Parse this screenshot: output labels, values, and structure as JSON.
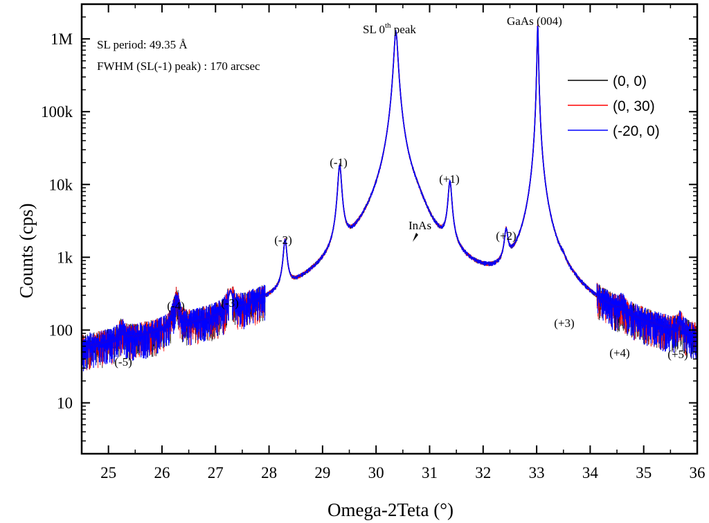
{
  "chart_data": {
    "type": "line",
    "title": "",
    "xlabel": "Omega-2Teta (°)",
    "ylabel": "Counts (cps)",
    "xlim": [
      24.5,
      36.0
    ],
    "ylim": [
      2,
      3000000
    ],
    "yscale": "log",
    "x_ticks": [
      25,
      26,
      27,
      28,
      29,
      30,
      31,
      32,
      33,
      34,
      35,
      36
    ],
    "x_tick_labels": [
      "25",
      "26",
      "27",
      "28",
      "29",
      "30",
      "31",
      "32",
      "33",
      "34",
      "35",
      "36"
    ],
    "y_ticks": [
      10,
      100,
      1000,
      10000,
      100000,
      1000000
    ],
    "y_tick_labels": [
      "10",
      "100",
      "1k",
      "10k",
      "100k",
      "1M"
    ],
    "grid": false,
    "legend_position": "top-right",
    "series": [
      {
        "name": "(0, 0)",
        "color": "#000000"
      },
      {
        "name": "(0, 30)",
        "color": "#ff0000"
      },
      {
        "name": "(-20, 0)",
        "color": "#0000ff"
      }
    ],
    "background_level": 10,
    "inas_shoulder": {
      "x": 30.7,
      "y": 1700
    },
    "peaks": [
      {
        "label": "(-5)",
        "x": 25.25,
        "y": 25,
        "width": 0.06
      },
      {
        "label": "(-4)",
        "x": 26.27,
        "y": 170,
        "width": 0.05
      },
      {
        "label": "(-3)",
        "x": 27.28,
        "y": 170,
        "width": 0.045
      },
      {
        "label": "(-2)",
        "x": 28.3,
        "y": 1350,
        "width": 0.035
      },
      {
        "label": "(-1)",
        "x": 29.32,
        "y": 17000,
        "width": 0.035
      },
      {
        "label": "SL 0th peak",
        "x": 30.37,
        "y": 1250000,
        "width": 0.035
      },
      {
        "label": "(+1)",
        "x": 31.38,
        "y": 9500,
        "width": 0.035
      },
      {
        "label": "(+2)",
        "x": 32.43,
        "y": 1500,
        "width": 0.035
      },
      {
        "label": "GaAs (004)",
        "x": 33.02,
        "y": 1500000,
        "width": 0.012
      },
      {
        "label": "(+3)",
        "x": 33.5,
        "y": 90,
        "width": 0.04
      },
      {
        "label": "(+4)",
        "x": 34.6,
        "y": 35,
        "width": 0.05
      },
      {
        "label": "(+5)",
        "x": 35.68,
        "y": 30,
        "width": 0.05
      }
    ],
    "annotations": [
      "SL period: 49.35 Å",
      "FWHM (SL(-1) peak) : 170 arcsec",
      "InAs"
    ]
  },
  "labels": {
    "annotation_period": "SL period: 49.35 Å",
    "annotation_fwhm": "FWHM (SL(-1) peak) : 170 arcsec",
    "sl0_prefix": "SL 0",
    "sl0_sup": "th",
    "sl0_suffix": " peak",
    "gaas": "GaAs (004)",
    "inas": "InAs",
    "peak_m5": "(-5)",
    "peak_m4": "(-4)",
    "peak_m3": "(-3)",
    "peak_m2": "(-2)",
    "peak_m1": "(-1)",
    "peak_p1": "(+1)",
    "peak_p2": "(+2)",
    "peak_p3": "(+3)",
    "peak_p4": "(+4)",
    "peak_p5": "(+5)"
  }
}
